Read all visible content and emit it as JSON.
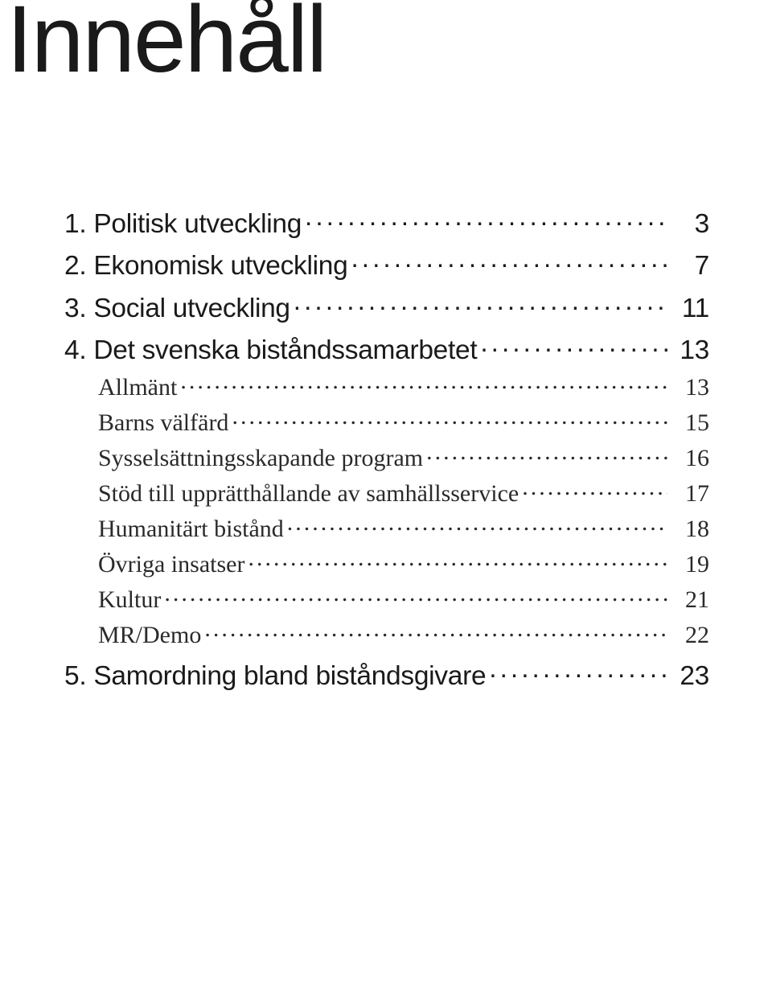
{
  "title": "Innehåll",
  "title_fontsize": 118,
  "title_color": "#1a1a1a",
  "background_color": "#ffffff",
  "text_color": "#1a1a1a",
  "section_fontsize": 33.5,
  "sub_fontsize": 30,
  "section_font": "Helvetica Neue",
  "sub_font": "Baskerville",
  "toc": [
    {
      "kind": "section",
      "label": "1. Politisk utveckling",
      "page": "3"
    },
    {
      "kind": "section",
      "label": "2. Ekonomisk utveckling",
      "page": "7"
    },
    {
      "kind": "section",
      "label": "3. Social utveckling",
      "page": "11"
    },
    {
      "kind": "section",
      "label": "4. Det svenska biståndssamarbetet",
      "page": "13"
    },
    {
      "kind": "sub",
      "label": "Allmänt",
      "page": "13"
    },
    {
      "kind": "sub",
      "label": "Barns välfärd",
      "page": "15"
    },
    {
      "kind": "sub",
      "label": "Sysselsättningsskapande program",
      "page": "16"
    },
    {
      "kind": "sub",
      "label": "Stöd till upprätthållande av samhällsservice",
      "page": "17"
    },
    {
      "kind": "sub",
      "label": "Humanitärt bistånd",
      "page": "18"
    },
    {
      "kind": "sub",
      "label": "Övriga insatser",
      "page": "19"
    },
    {
      "kind": "sub",
      "label": "Kultur",
      "page": "21"
    },
    {
      "kind": "sub",
      "label": "MR/Demo",
      "page": "22"
    },
    {
      "kind": "section",
      "label": "5. Samordning bland biståndsgivare",
      "page": "23"
    }
  ]
}
